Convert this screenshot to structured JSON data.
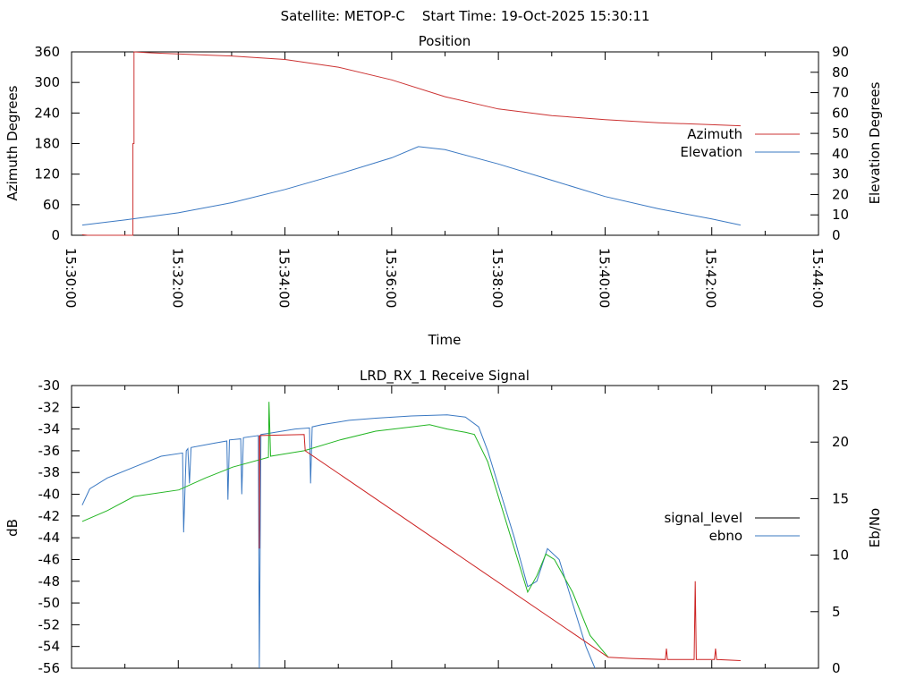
{
  "header": {
    "title": "Satellite: METOP-C    Start Time: 19-Oct-2025 15:30:11"
  },
  "chart_data": [
    {
      "type": "line",
      "title": "Position",
      "xlabel": "Time",
      "ylabel": "Azimuth Degrees",
      "y2label": "Elevation Degrees",
      "xlim_minutes_after_1530": [
        0,
        14
      ],
      "ylim": [
        0,
        360
      ],
      "y2lim": [
        0,
        90
      ],
      "xticks": [
        "15:30:00",
        "15:32:00",
        "15:34:00",
        "15:36:00",
        "15:38:00",
        "15:40:00",
        "15:42:00",
        "15:44:00"
      ],
      "yticks": [
        "0",
        "60",
        "120",
        "180",
        "240",
        "300",
        "360"
      ],
      "y2ticks": [
        "0",
        "10",
        "20",
        "30",
        "40",
        "50",
        "60",
        "70",
        "80",
        "90"
      ],
      "legend_position": "right",
      "series": [
        {
          "name": "Azimuth",
          "axis": "y",
          "color": "#cc3333",
          "points": [
            [
              0.2,
              1
            ],
            [
              0.3,
              0
            ],
            [
              1.15,
              0
            ],
            [
              1.15,
              180
            ],
            [
              1.17,
              180
            ],
            [
              1.17,
              360
            ],
            [
              1.5,
              358
            ],
            [
              3,
              352
            ],
            [
              4,
              345
            ],
            [
              5,
              330
            ],
            [
              6,
              305
            ],
            [
              7,
              272
            ],
            [
              8,
              248
            ],
            [
              9,
              235
            ],
            [
              10,
              227
            ],
            [
              11,
              221
            ],
            [
              12,
              217
            ],
            [
              12.54,
              215
            ]
          ]
        },
        {
          "name": "Elevation",
          "axis": "y2",
          "color": "#3a78c2",
          "points": [
            [
              0.2,
              5
            ],
            [
              1,
              7.5
            ],
            [
              2,
              11
            ],
            [
              3,
              16
            ],
            [
              4,
              22.5
            ],
            [
              5,
              30
            ],
            [
              6,
              38
            ],
            [
              6.5,
              43.5
            ],
            [
              7,
              42
            ],
            [
              8,
              35
            ],
            [
              9,
              27
            ],
            [
              10,
              19
            ],
            [
              11,
              13
            ],
            [
              12,
              8
            ],
            [
              12.54,
              5
            ]
          ]
        }
      ]
    },
    {
      "type": "line",
      "title": "LRD_RX_1 Receive Signal",
      "xlabel": "",
      "ylabel": "dB",
      "y2label": "Eb/No",
      "xlim_minutes_after_1530": [
        0,
        14
      ],
      "ylim": [
        -56,
        -30
      ],
      "y2lim": [
        0,
        25
      ],
      "yticks": [
        "-56",
        "-54",
        "-52",
        "-50",
        "-48",
        "-46",
        "-44",
        "-42",
        "-40",
        "-38",
        "-36",
        "-34",
        "-32",
        "-30"
      ],
      "y2ticks": [
        "0",
        "5",
        "10",
        "15",
        "20",
        "25"
      ],
      "legend_position": "right",
      "legend": [
        {
          "name": "signal_level",
          "color": "#000000"
        },
        {
          "name": "ebno",
          "color": "#3a78c2"
        }
      ],
      "series": [
        {
          "name": "blue trace",
          "color": "#3a78c2",
          "points": [
            [
              0.2,
              -41
            ],
            [
              0.34,
              -39.5
            ],
            [
              0.67,
              -38.5
            ],
            [
              1.17,
              -37.5
            ],
            [
              1.68,
              -36.5
            ],
            [
              2.08,
              -36.2
            ],
            [
              2.1,
              -43.5
            ],
            [
              2.15,
              -36
            ],
            [
              2.18,
              -35.8
            ],
            [
              2.21,
              -39
            ],
            [
              2.24,
              -35.7
            ],
            [
              2.68,
              -35.3
            ],
            [
              2.91,
              -35.1
            ],
            [
              2.93,
              -40.5
            ],
            [
              2.96,
              -35
            ],
            [
              3.17,
              -34.9
            ],
            [
              3.19,
              -40
            ],
            [
              3.22,
              -34.8
            ],
            [
              3.5,
              -34.6
            ],
            [
              3.52,
              -56
            ],
            [
              3.55,
              -34.5
            ],
            [
              3.69,
              -34.4
            ],
            [
              4.19,
              -34
            ],
            [
              4.46,
              -33.9
            ],
            [
              4.48,
              -39
            ],
            [
              4.51,
              -33.8
            ],
            [
              4.69,
              -33.6
            ],
            [
              5.2,
              -33.2
            ],
            [
              5.7,
              -33
            ],
            [
              6.37,
              -32.8
            ],
            [
              7.04,
              -32.7
            ],
            [
              7.38,
              -32.9
            ],
            [
              7.63,
              -33.8
            ],
            [
              7.8,
              -36
            ],
            [
              8.05,
              -40
            ],
            [
              8.3,
              -44
            ],
            [
              8.55,
              -48.5
            ],
            [
              8.72,
              -48
            ],
            [
              8.92,
              -45
            ],
            [
              9.14,
              -46
            ],
            [
              9.39,
              -50
            ],
            [
              9.64,
              -54
            ],
            [
              9.81,
              -56
            ]
          ]
        },
        {
          "name": "green trace",
          "color": "#22b522",
          "points": [
            [
              0.2,
              -42.5
            ],
            [
              0.67,
              -41.5
            ],
            [
              1.17,
              -40.2
            ],
            [
              2.01,
              -39.6
            ],
            [
              2.51,
              -38.5
            ],
            [
              3.02,
              -37.5
            ],
            [
              3.69,
              -36.6
            ],
            [
              3.7,
              -31.5
            ],
            [
              3.73,
              -36.5
            ],
            [
              4.36,
              -36
            ],
            [
              5.03,
              -35
            ],
            [
              5.7,
              -34.2
            ],
            [
              6.37,
              -33.8
            ],
            [
              6.71,
              -33.6
            ],
            [
              7.04,
              -34
            ],
            [
              7.38,
              -34.3
            ],
            [
              7.55,
              -34.5
            ],
            [
              7.8,
              -37
            ],
            [
              8.05,
              -41
            ],
            [
              8.3,
              -45
            ],
            [
              8.55,
              -49
            ],
            [
              8.72,
              -47.5
            ],
            [
              8.89,
              -45.5
            ],
            [
              9.05,
              -46
            ],
            [
              9.39,
              -49
            ],
            [
              9.72,
              -53
            ],
            [
              10.06,
              -55
            ]
          ]
        },
        {
          "name": "red trace",
          "color": "#cc2222",
          "points": [
            [
              3.52,
              -34.6
            ],
            [
              3.52,
              -45
            ],
            [
              3.53,
              -34.6
            ],
            [
              4.36,
              -34.5
            ],
            [
              4.38,
              -36
            ],
            [
              10.06,
              -55
            ],
            [
              10.5,
              -55.1
            ],
            [
              11.13,
              -55.2
            ],
            [
              11.15,
              -54.2
            ],
            [
              11.17,
              -55.2
            ],
            [
              11.67,
              -55.2
            ],
            [
              11.69,
              -48
            ],
            [
              11.71,
              -55.2
            ],
            [
              12.05,
              -55.2
            ],
            [
              12.07,
              -54.2
            ],
            [
              12.09,
              -55.2
            ],
            [
              12.54,
              -55.3
            ]
          ]
        }
      ]
    }
  ]
}
